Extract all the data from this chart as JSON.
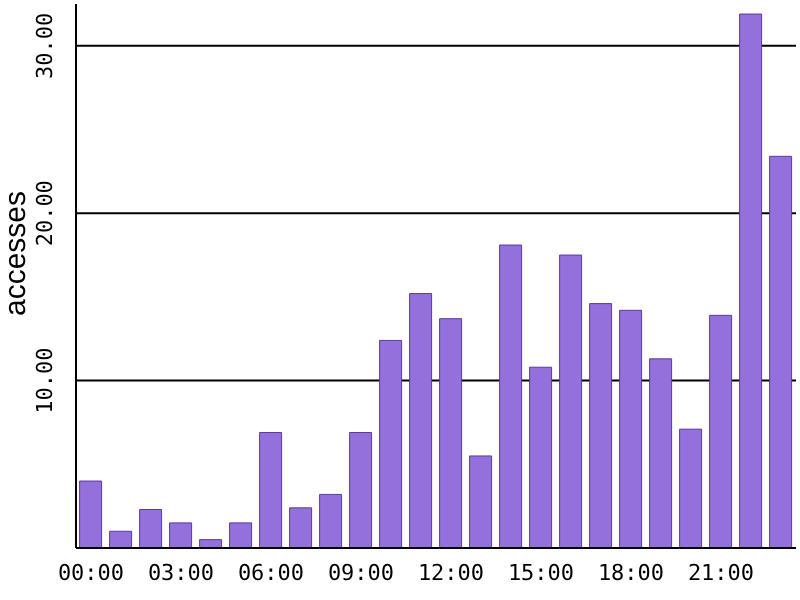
{
  "chart_data": {
    "type": "bar",
    "ylabel": "accesses",
    "categories": [
      "00:00",
      null,
      null,
      "03:00",
      null,
      null,
      "06:00",
      null,
      null,
      "09:00",
      null,
      null,
      "12:00",
      null,
      null,
      "15:00",
      null,
      null,
      "18:00",
      null,
      null,
      "21:00",
      null,
      null
    ],
    "values": [
      4.0,
      1.0,
      2.3,
      1.5,
      0.5,
      1.5,
      6.9,
      2.4,
      3.2,
      6.9,
      12.4,
      15.2,
      13.7,
      5.5,
      18.1,
      10.8,
      17.5,
      14.6,
      14.2,
      11.3,
      7.1,
      13.9,
      31.9,
      23.4
    ],
    "color": "#9370db",
    "ylim": [
      0,
      32.5
    ],
    "yticks": [
      {
        "value": 10,
        "label": "10.00"
      },
      {
        "value": 20,
        "label": "20.00"
      },
      {
        "value": 30,
        "label": "30.00"
      }
    ],
    "grid": "y"
  }
}
